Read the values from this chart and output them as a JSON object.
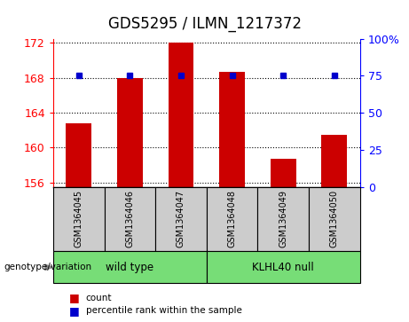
{
  "title": "GDS5295 / ILMN_1217372",
  "samples": [
    "GSM1364045",
    "GSM1364046",
    "GSM1364047",
    "GSM1364048",
    "GSM1364049",
    "GSM1364050"
  ],
  "counts": [
    162.8,
    168.0,
    172.0,
    168.7,
    158.7,
    161.5
  ],
  "percentiles": [
    75,
    75,
    75,
    75,
    75,
    75
  ],
  "ylim_left": [
    155.5,
    172.5
  ],
  "ylim_right": [
    0,
    100
  ],
  "left_ticks": [
    156,
    160,
    164,
    168,
    172
  ],
  "right_ticks": [
    0,
    25,
    50,
    75,
    100
  ],
  "right_tick_labels": [
    "0",
    "25",
    "50",
    "75",
    "100%"
  ],
  "bar_color": "#cc0000",
  "dot_color": "#0000cc",
  "group1_label": "wild type",
  "group2_label": "KLHL40 null",
  "group_color": "#77dd77",
  "group_label": "genotype/variation",
  "legend_count": "count",
  "legend_percentile": "percentile rank within the sample",
  "box_color": "#cccccc",
  "title_fontsize": 12,
  "tick_fontsize": 9,
  "label_fontsize": 8
}
